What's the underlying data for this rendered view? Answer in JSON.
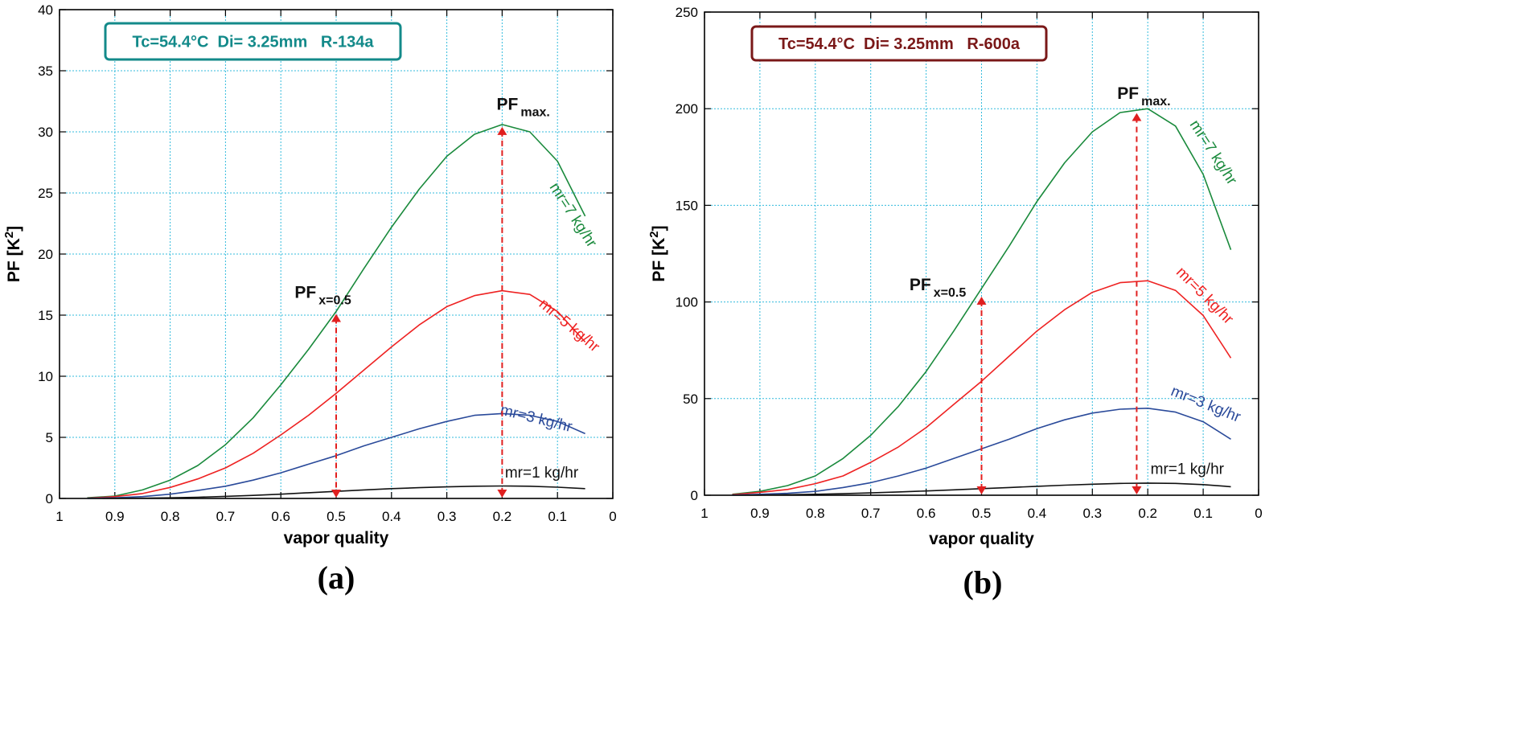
{
  "colors": {
    "grid": "#33bbdd",
    "green": "#1a8a3c",
    "red": "#ee2222",
    "blue": "#2a4a9a",
    "black": "#111111",
    "arrow": "#e02020",
    "teal_box": "#138a8a",
    "maroon_box": "#7a1818"
  },
  "chart_data": [
    {
      "type": "line",
      "caption": "(a)",
      "title_box": "Tc=54.4°C  Di= 3.25mm   R-134a",
      "xlabel": "vapor quality",
      "ylabel_main": "PF  [K",
      "ylabel_sup": "2",
      "ylabel_close": "]",
      "xlim": [
        1,
        0
      ],
      "ylim": [
        0,
        40
      ],
      "xticks": [
        1,
        0.9,
        0.8,
        0.7,
        0.6,
        0.5,
        0.4,
        0.3,
        0.2,
        0.1,
        0
      ],
      "xtick_labels": [
        "1",
        "0.9",
        "0.8",
        "0.7",
        "0.6",
        "0.5",
        "0.4",
        "0.3",
        "0.2",
        "0.1",
        "0"
      ],
      "yticks": [
        0,
        5,
        10,
        15,
        20,
        25,
        30,
        35,
        40
      ],
      "ytick_labels": [
        "0",
        "5",
        "10",
        "15",
        "20",
        "25",
        "30",
        "35",
        "40"
      ],
      "x": [
        0.95,
        0.9,
        0.85,
        0.8,
        0.75,
        0.7,
        0.65,
        0.6,
        0.55,
        0.5,
        0.45,
        0.4,
        0.35,
        0.3,
        0.25,
        0.2,
        0.15,
        0.1,
        0.05
      ],
      "series": [
        {
          "name": "mr=7 kg/hr",
          "color_key": "green",
          "values": [
            0.05,
            0.2,
            0.7,
            1.5,
            2.7,
            4.4,
            6.6,
            9.3,
            12.2,
            15.3,
            18.8,
            22.2,
            25.3,
            28.0,
            29.8,
            30.6,
            30.0,
            27.6,
            23.1
          ]
        },
        {
          "name": "mr=5 kg/hr",
          "color_key": "red",
          "values": [
            0.02,
            0.15,
            0.4,
            0.9,
            1.6,
            2.5,
            3.7,
            5.2,
            6.8,
            8.6,
            10.5,
            12.4,
            14.2,
            15.7,
            16.6,
            17.0,
            16.7,
            15.3,
            12.8
          ]
        },
        {
          "name": "mr=3 kg/hr",
          "color_key": "blue",
          "values": [
            0.01,
            0.05,
            0.15,
            0.35,
            0.65,
            1.0,
            1.5,
            2.1,
            2.8,
            3.5,
            4.3,
            5.0,
            5.7,
            6.3,
            6.8,
            6.95,
            6.8,
            6.3,
            5.3
          ]
        },
        {
          "name": "mr=1 kg/hr",
          "color_key": "black",
          "values": [
            0.0,
            0.01,
            0.02,
            0.05,
            0.1,
            0.17,
            0.25,
            0.35,
            0.47,
            0.58,
            0.7,
            0.8,
            0.88,
            0.95,
            1.0,
            1.02,
            1.0,
            0.92,
            0.8
          ]
        }
      ],
      "series_labels": [
        {
          "text": "mr=7 kg/hr",
          "color_key": "green",
          "x": 0.115,
          "y": 25.5,
          "rotate": 57
        },
        {
          "text": "mr=5 kg/hr",
          "color_key": "red",
          "x": 0.135,
          "y": 15.8,
          "rotate": 40
        },
        {
          "text": "mr=3 kg/hr",
          "color_key": "blue",
          "x": 0.205,
          "y": 6.9,
          "rotate": 14
        },
        {
          "text": "mr=1 kg/hr",
          "color_key": "black",
          "x": 0.195,
          "y": 1.7,
          "rotate": 0
        }
      ],
      "annotations": [
        {
          "main": "PF",
          "sub": "max.",
          "x": 0.21,
          "y": 31.8,
          "arrow_x": 0.2,
          "arrow_top": 30.6
        },
        {
          "main": "PF",
          "sub": "x=0.5",
          "x": 0.575,
          "y": 16.4,
          "arrow_x": 0.5,
          "arrow_top": 15.3
        }
      ]
    },
    {
      "type": "line",
      "caption": "(b)",
      "title_box": "Tc=54.4°C  Di= 3.25mm   R-600a",
      "xlabel": "vapor quality",
      "ylabel_main": "PF  [K",
      "ylabel_sup": "2",
      "ylabel_close": "]",
      "xlim": [
        1,
        0
      ],
      "ylim": [
        0,
        250
      ],
      "xticks": [
        1,
        0.9,
        0.8,
        0.7,
        0.6,
        0.5,
        0.4,
        0.3,
        0.2,
        0.1,
        0
      ],
      "xtick_labels": [
        "1",
        "0.9",
        "0.8",
        "0.7",
        "0.6",
        "0.5",
        "0.4",
        "0.3",
        "0.2",
        "0.1",
        "0"
      ],
      "yticks": [
        0,
        50,
        100,
        150,
        200,
        250
      ],
      "ytick_labels": [
        "0",
        "50",
        "100",
        "150",
        "200",
        "250"
      ],
      "x": [
        0.95,
        0.9,
        0.85,
        0.8,
        0.75,
        0.7,
        0.65,
        0.6,
        0.55,
        0.5,
        0.45,
        0.4,
        0.35,
        0.3,
        0.25,
        0.2,
        0.15,
        0.1,
        0.05
      ],
      "series": [
        {
          "name": "mr=7 kg/hr",
          "color_key": "green",
          "values": [
            0.5,
            2,
            5,
            10,
            19,
            31,
            46,
            64,
            85,
            107,
            129,
            152,
            172,
            188,
            198,
            200,
            191,
            166,
            127
          ]
        },
        {
          "name": "mr=5 kg/hr",
          "color_key": "red",
          "values": [
            0.3,
            1.5,
            3,
            6,
            10,
            17,
            25,
            35,
            47,
            59,
            72,
            85,
            96,
            105,
            110,
            111,
            106,
            93,
            71
          ]
        },
        {
          "name": "mr=3 kg/hr",
          "color_key": "blue",
          "values": [
            0.1,
            0.5,
            1,
            2,
            4,
            6.5,
            10,
            14,
            19,
            24,
            29,
            34.5,
            39,
            42.5,
            44.5,
            45,
            43,
            38,
            29
          ]
        },
        {
          "name": "mr=1 kg/hr",
          "color_key": "black",
          "values": [
            0,
            0.1,
            0.3,
            0.5,
            0.8,
            1.2,
            1.7,
            2.2,
            2.8,
            3.4,
            4.0,
            4.6,
            5.2,
            5.7,
            6.1,
            6.3,
            6.1,
            5.5,
            4.4
          ]
        }
      ],
      "series_labels": [
        {
          "text": "mr=7 kg/hr",
          "color_key": "green",
          "x": 0.125,
          "y": 192,
          "rotate": 57
        },
        {
          "text": "mr=5 kg/hr",
          "color_key": "red",
          "x": 0.15,
          "y": 115,
          "rotate": 45
        },
        {
          "text": "mr=3 kg/hr",
          "color_key": "blue",
          "x": 0.16,
          "y": 52,
          "rotate": 22
        },
        {
          "text": "mr=1 kg/hr",
          "color_key": "black",
          "x": 0.195,
          "y": 11,
          "rotate": 0
        }
      ],
      "annotations": [
        {
          "main": "PF",
          "sub": "max.",
          "x": 0.255,
          "y": 205,
          "arrow_x": 0.22,
          "arrow_top": 199
        },
        {
          "main": "PF",
          "sub": "x=0.5",
          "x": 0.63,
          "y": 106,
          "arrow_x": 0.5,
          "arrow_top": 104
        }
      ]
    }
  ]
}
